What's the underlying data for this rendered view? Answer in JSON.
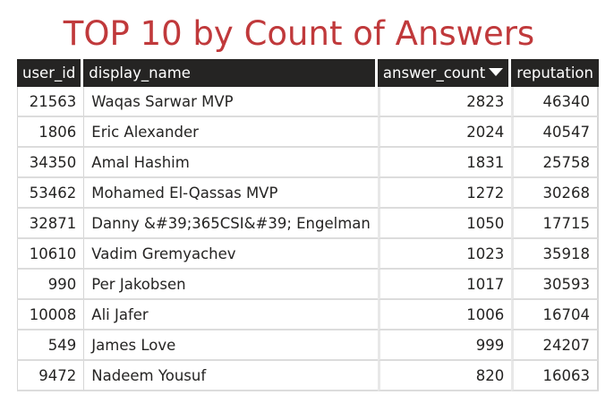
{
  "title": "TOP 10 by Count of Answers",
  "columns": {
    "user_id": "user_id",
    "display_name": "display_name",
    "answer_count": "answer_count",
    "reputation": "reputation"
  },
  "sort": {
    "column": "answer_count",
    "direction": "descending"
  },
  "rows": [
    {
      "user_id": "21563",
      "display_name": "Waqas Sarwar MVP",
      "answer_count": "2823",
      "reputation": "46340"
    },
    {
      "user_id": "1806",
      "display_name": "Eric Alexander",
      "answer_count": "2024",
      "reputation": "40547"
    },
    {
      "user_id": "34350",
      "display_name": "Amal Hashim",
      "answer_count": "1831",
      "reputation": "25758"
    },
    {
      "user_id": "53462",
      "display_name": "Mohamed El-Qassas MVP",
      "answer_count": "1272",
      "reputation": "30268"
    },
    {
      "user_id": "32871",
      "display_name": "Danny &#39;365CSI&#39; Engelman",
      "answer_count": "1050",
      "reputation": "17715"
    },
    {
      "user_id": "10610",
      "display_name": "Vadim Gremyachev",
      "answer_count": "1023",
      "reputation": "35918"
    },
    {
      "user_id": "990",
      "display_name": "Per Jakobsen",
      "answer_count": "1017",
      "reputation": "30593"
    },
    {
      "user_id": "10008",
      "display_name": "Ali Jafer",
      "answer_count": "1006",
      "reputation": "16704"
    },
    {
      "user_id": "549",
      "display_name": "James Love",
      "answer_count": "999",
      "reputation": "24207"
    },
    {
      "user_id": "9472",
      "display_name": "Nadeem Yousuf",
      "answer_count": "820",
      "reputation": "16063"
    }
  ],
  "colors": {
    "title": "#c0393b",
    "header_bg": "#252423",
    "header_text": "#ffffff",
    "grid_line": "#dcdcdc"
  }
}
